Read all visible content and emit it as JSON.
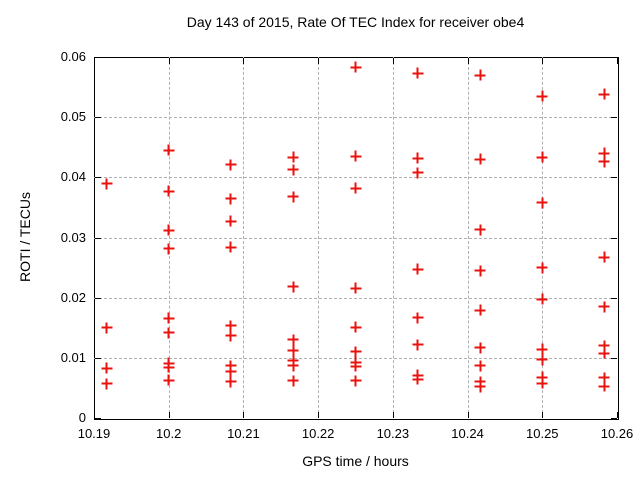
{
  "chart_data": {
    "type": "scatter",
    "title": "Day 143 of 2015, Rate Of TEC Index for receiver obe4",
    "xlabel": "GPS time / hours",
    "ylabel": "ROTI / TECUs",
    "xlim": [
      10.19,
      10.26
    ],
    "ylim": [
      0,
      0.06
    ],
    "x_ticks": [
      10.19,
      10.2,
      10.21,
      10.22,
      10.23,
      10.24,
      10.25,
      10.26
    ],
    "x_tick_labels": [
      "10.19",
      "10.2",
      "10.21",
      "10.22",
      "10.23",
      "10.24",
      "10.25",
      "10.26"
    ],
    "y_ticks": [
      0,
      0.01,
      0.02,
      0.03,
      0.04,
      0.05,
      0.06
    ],
    "y_tick_labels": [
      "0",
      "0.01",
      "0.02",
      "0.03",
      "0.04",
      "0.05",
      "0.06"
    ],
    "grid": true,
    "legend": "none",
    "marker": "plus",
    "marker_color": "#e8130e",
    "grid_color": "#b0b0b0",
    "axis_color": "#000000",
    "background_color": "#ffffff",
    "series": [
      {
        "name": "ROTI",
        "points": [
          [
            10.1917,
            0.0389
          ],
          [
            10.1917,
            0.015
          ],
          [
            10.1917,
            0.0083
          ],
          [
            10.1917,
            0.0057
          ],
          [
            10.2,
            0.0445
          ],
          [
            10.2,
            0.0377
          ],
          [
            10.2,
            0.0312
          ],
          [
            10.2,
            0.0281
          ],
          [
            10.2,
            0.0166
          ],
          [
            10.2,
            0.0142
          ],
          [
            10.2,
            0.0091
          ],
          [
            10.2,
            0.0084
          ],
          [
            10.2,
            0.0063
          ],
          [
            10.2083,
            0.0421
          ],
          [
            10.2083,
            0.0364
          ],
          [
            10.2083,
            0.0327
          ],
          [
            10.2083,
            0.0284
          ],
          [
            10.2083,
            0.0153
          ],
          [
            10.2083,
            0.0137
          ],
          [
            10.2083,
            0.0087
          ],
          [
            10.2083,
            0.0078
          ],
          [
            10.2083,
            0.006
          ],
          [
            10.2167,
            0.0433
          ],
          [
            10.2167,
            0.0413
          ],
          [
            10.2167,
            0.0368
          ],
          [
            10.2167,
            0.0218
          ],
          [
            10.2167,
            0.013
          ],
          [
            10.2167,
            0.0113
          ],
          [
            10.2167,
            0.0095
          ],
          [
            10.2167,
            0.0087
          ],
          [
            10.2167,
            0.0062
          ],
          [
            10.225,
            0.0583
          ],
          [
            10.225,
            0.0435
          ],
          [
            10.225,
            0.0382
          ],
          [
            10.225,
            0.0216
          ],
          [
            10.225,
            0.0151
          ],
          [
            10.225,
            0.011
          ],
          [
            10.225,
            0.0092
          ],
          [
            10.225,
            0.0086
          ],
          [
            10.225,
            0.0062
          ],
          [
            10.2333,
            0.0573
          ],
          [
            10.2333,
            0.0432
          ],
          [
            10.2333,
            0.0408
          ],
          [
            10.2333,
            0.0247
          ],
          [
            10.2333,
            0.0167
          ],
          [
            10.2333,
            0.0122
          ],
          [
            10.2333,
            0.0071
          ],
          [
            10.2333,
            0.0064
          ],
          [
            10.2417,
            0.057
          ],
          [
            10.2417,
            0.043
          ],
          [
            10.2417,
            0.0313
          ],
          [
            10.2417,
            0.0245
          ],
          [
            10.2417,
            0.0179
          ],
          [
            10.2417,
            0.0117
          ],
          [
            10.2417,
            0.0087
          ],
          [
            10.2417,
            0.006
          ],
          [
            10.2417,
            0.0052
          ],
          [
            10.25,
            0.0535
          ],
          [
            10.25,
            0.0433
          ],
          [
            10.25,
            0.0358
          ],
          [
            10.25,
            0.025
          ],
          [
            10.25,
            0.0197
          ],
          [
            10.25,
            0.0114
          ],
          [
            10.25,
            0.0097
          ],
          [
            10.25,
            0.0068
          ],
          [
            10.25,
            0.0058
          ],
          [
            10.2583,
            0.0538
          ],
          [
            10.2583,
            0.044
          ],
          [
            10.2583,
            0.0426
          ],
          [
            10.2583,
            0.0267
          ],
          [
            10.2583,
            0.0185
          ],
          [
            10.2583,
            0.012
          ],
          [
            10.2583,
            0.0108
          ],
          [
            10.2583,
            0.0067
          ],
          [
            10.2583,
            0.0053
          ]
        ]
      }
    ]
  }
}
